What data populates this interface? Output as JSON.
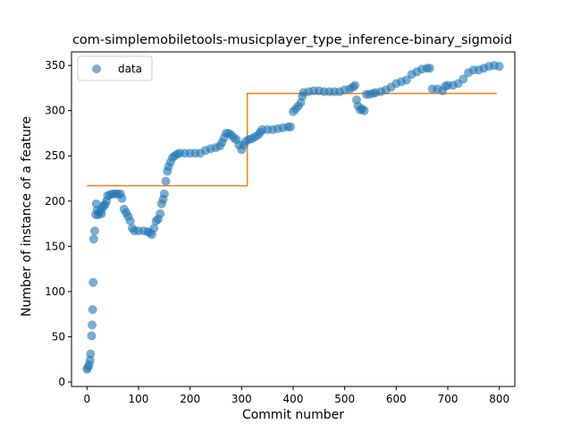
{
  "chart_data": {
    "type": "scatter",
    "title": "com-simplemobiletools-musicplayer_type_inference-binary_sigmoid",
    "xlabel": "Commit number",
    "ylabel": "Number of instance of a feature",
    "xlim": [
      -30,
      830
    ],
    "ylim": [
      -5,
      365
    ],
    "xticks": [
      0,
      100,
      200,
      300,
      400,
      500,
      600,
      700,
      800
    ],
    "yticks": [
      0,
      50,
      100,
      150,
      200,
      250,
      300,
      350
    ],
    "legend": {
      "position": "top-left",
      "entries": [
        "data"
      ]
    },
    "grid": false,
    "series": [
      {
        "name": "data",
        "kind": "scatter",
        "color": "#1f77b4",
        "points": [
          [
            0,
            14
          ],
          [
            2,
            16
          ],
          [
            4,
            19
          ],
          [
            6,
            24
          ],
          [
            7,
            31
          ],
          [
            9,
            51
          ],
          [
            10,
            63
          ],
          [
            11,
            80
          ],
          [
            12,
            110
          ],
          [
            13,
            158
          ],
          [
            15,
            167
          ],
          [
            17,
            185
          ],
          [
            18,
            197
          ],
          [
            20,
            190
          ],
          [
            22,
            185
          ],
          [
            25,
            188
          ],
          [
            28,
            186
          ],
          [
            30,
            192
          ],
          [
            32,
            195
          ],
          [
            35,
            196
          ],
          [
            38,
            200
          ],
          [
            40,
            206
          ],
          [
            45,
            207
          ],
          [
            50,
            208
          ],
          [
            55,
            208
          ],
          [
            60,
            208
          ],
          [
            65,
            208
          ],
          [
            68,
            203
          ],
          [
            72,
            191
          ],
          [
            76,
            187
          ],
          [
            80,
            183
          ],
          [
            84,
            178
          ],
          [
            88,
            170
          ],
          [
            92,
            167
          ],
          [
            100,
            167
          ],
          [
            110,
            167
          ],
          [
            118,
            166
          ],
          [
            122,
            165
          ],
          [
            126,
            163
          ],
          [
            130,
            170
          ],
          [
            134,
            178
          ],
          [
            138,
            180
          ],
          [
            142,
            186
          ],
          [
            145,
            197
          ],
          [
            148,
            202
          ],
          [
            150,
            208
          ],
          [
            153,
            222
          ],
          [
            156,
            233
          ],
          [
            158,
            238
          ],
          [
            162,
            243
          ],
          [
            166,
            248
          ],
          [
            170,
            250
          ],
          [
            175,
            252
          ],
          [
            180,
            253
          ],
          [
            190,
            253
          ],
          [
            200,
            253
          ],
          [
            210,
            253
          ],
          [
            220,
            253
          ],
          [
            230,
            256
          ],
          [
            240,
            258
          ],
          [
            250,
            259
          ],
          [
            258,
            261
          ],
          [
            262,
            265
          ],
          [
            266,
            270
          ],
          [
            270,
            275
          ],
          [
            275,
            275
          ],
          [
            280,
            273
          ],
          [
            285,
            270
          ],
          [
            290,
            268
          ],
          [
            295,
            262
          ],
          [
            300,
            257
          ],
          [
            304,
            262
          ],
          [
            308,
            266
          ],
          [
            314,
            268
          ],
          [
            320,
            269
          ],
          [
            326,
            271
          ],
          [
            332,
            273
          ],
          [
            336,
            276
          ],
          [
            340,
            279
          ],
          [
            350,
            279
          ],
          [
            360,
            279
          ],
          [
            370,
            280
          ],
          [
            380,
            281
          ],
          [
            390,
            282
          ],
          [
            395,
            282
          ],
          [
            400,
            299
          ],
          [
            405,
            302
          ],
          [
            410,
            305
          ],
          [
            415,
            309
          ],
          [
            418,
            316
          ],
          [
            420,
            320
          ],
          [
            430,
            321
          ],
          [
            440,
            322
          ],
          [
            450,
            322
          ],
          [
            460,
            321
          ],
          [
            470,
            321
          ],
          [
            480,
            321
          ],
          [
            490,
            321
          ],
          [
            500,
            323
          ],
          [
            510,
            324
          ],
          [
            516,
            326
          ],
          [
            520,
            328
          ],
          [
            523,
            312
          ],
          [
            526,
            305
          ],
          [
            530,
            301
          ],
          [
            534,
            302
          ],
          [
            538,
            300
          ],
          [
            542,
            318
          ],
          [
            548,
            318
          ],
          [
            555,
            319
          ],
          [
            560,
            320
          ],
          [
            570,
            321
          ],
          [
            580,
            323
          ],
          [
            590,
            326
          ],
          [
            600,
            330
          ],
          [
            610,
            332
          ],
          [
            620,
            334
          ],
          [
            630,
            340
          ],
          [
            640,
            343
          ],
          [
            650,
            346
          ],
          [
            660,
            347
          ],
          [
            665,
            347
          ],
          [
            670,
            324
          ],
          [
            680,
            324
          ],
          [
            690,
            322
          ],
          [
            695,
            327
          ],
          [
            700,
            328
          ],
          [
            710,
            328
          ],
          [
            720,
            330
          ],
          [
            730,
            335
          ],
          [
            740,
            342
          ],
          [
            750,
            345
          ],
          [
            760,
            345
          ],
          [
            770,
            347
          ],
          [
            780,
            349
          ],
          [
            790,
            350
          ],
          [
            800,
            349
          ]
        ]
      },
      {
        "name": "",
        "kind": "step",
        "color": "#ff7f0e",
        "segments": [
          {
            "x_start": 0,
            "x_end": 311,
            "y": 217
          },
          {
            "x_start": 311,
            "x_end": 795,
            "y": 319
          }
        ]
      }
    ]
  }
}
